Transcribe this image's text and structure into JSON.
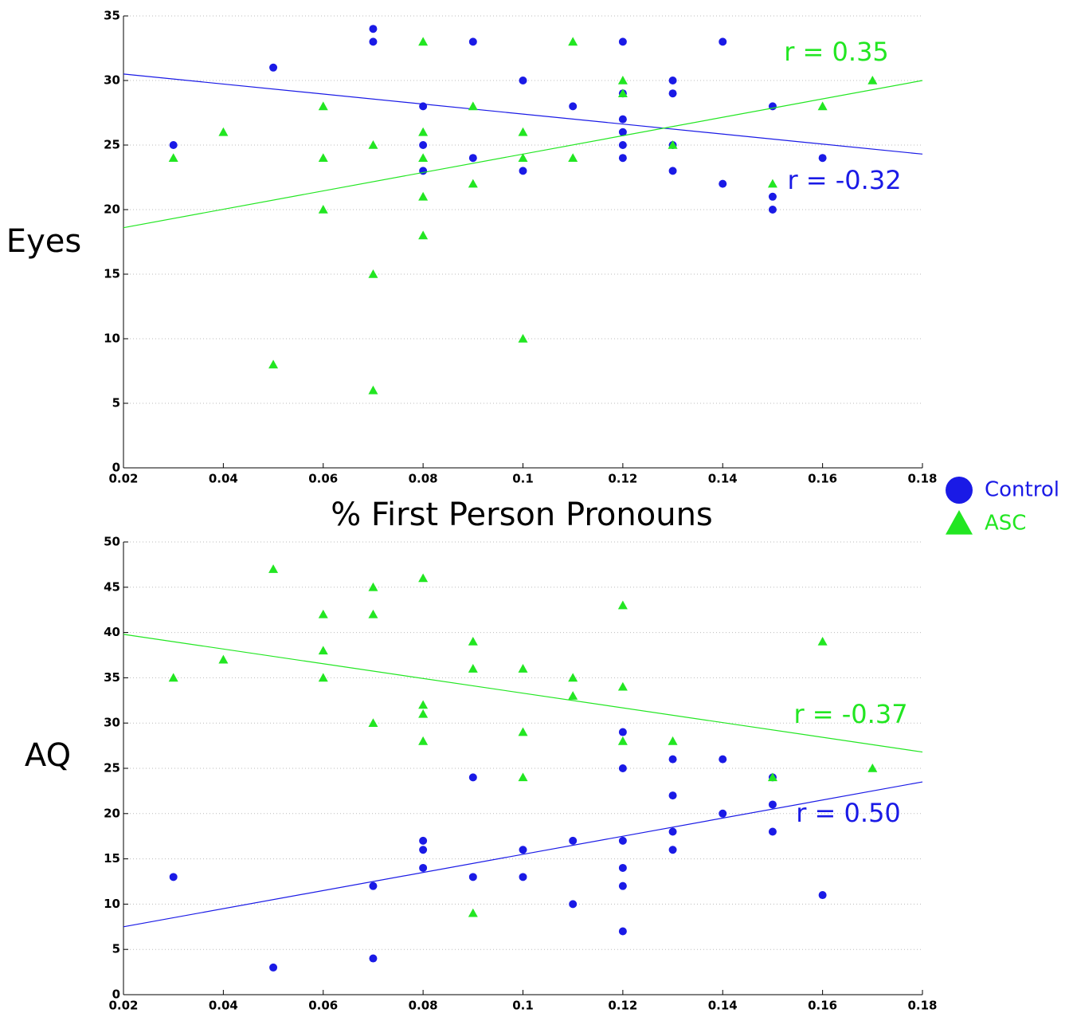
{
  "chart_data": [
    {
      "type": "scatter",
      "y_label": "Eyes",
      "x_label": "% First Person Pronouns",
      "xlim": [
        0.02,
        0.18
      ],
      "ylim": [
        0,
        35
      ],
      "xticks": [
        0.02,
        0.04,
        0.06,
        0.08,
        0.1,
        0.12,
        0.14,
        0.16,
        0.18
      ],
      "yticks": [
        0,
        5,
        10,
        15,
        20,
        25,
        30,
        35
      ],
      "grid": true,
      "series": [
        {
          "name": "Control",
          "color": "#1a1ae6",
          "marker": "circle",
          "x": [
            0.03,
            0.05,
            0.07,
            0.07,
            0.08,
            0.08,
            0.08,
            0.09,
            0.09,
            0.1,
            0.1,
            0.11,
            0.12,
            0.12,
            0.12,
            0.12,
            0.12,
            0.12,
            0.13,
            0.13,
            0.13,
            0.13,
            0.14,
            0.14,
            0.15,
            0.15,
            0.15,
            0.16
          ],
          "values": [
            25,
            31,
            34,
            33,
            28,
            25,
            23,
            33,
            24,
            30,
            23,
            28,
            33,
            29,
            27,
            26,
            25,
            24,
            30,
            29,
            25,
            23,
            33,
            22,
            28,
            21,
            20,
            24
          ],
          "fit": {
            "x": [
              0.02,
              0.18
            ],
            "values": [
              30.5,
              24.3
            ]
          },
          "r_label": "r = -0.32"
        },
        {
          "name": "ASC",
          "color": "#22e622",
          "marker": "triangle",
          "x": [
            0.03,
            0.04,
            0.05,
            0.06,
            0.06,
            0.06,
            0.07,
            0.07,
            0.07,
            0.08,
            0.08,
            0.08,
            0.08,
            0.08,
            0.09,
            0.09,
            0.1,
            0.1,
            0.1,
            0.11,
            0.11,
            0.12,
            0.12,
            0.13,
            0.15,
            0.16,
            0.17
          ],
          "values": [
            24,
            26,
            8,
            28,
            24,
            20,
            25,
            15,
            6,
            33,
            26,
            24,
            21,
            18,
            28,
            22,
            26,
            24,
            10,
            33,
            24,
            30,
            29,
            25,
            22,
            28,
            30
          ],
          "fit": {
            "x": [
              0.02,
              0.18
            ],
            "values": [
              18.6,
              30
            ]
          },
          "r_label": "r = 0.35"
        }
      ]
    },
    {
      "type": "scatter",
      "y_label": "AQ",
      "xlim": [
        0.02,
        0.18
      ],
      "ylim": [
        0,
        50
      ],
      "xticks": [
        0.02,
        0.04,
        0.06,
        0.08,
        0.1,
        0.12,
        0.14,
        0.16,
        0.18
      ],
      "yticks": [
        0,
        5,
        10,
        15,
        20,
        25,
        30,
        35,
        40,
        45,
        50
      ],
      "grid": true,
      "series": [
        {
          "name": "Control",
          "color": "#1a1ae6",
          "marker": "circle",
          "x": [
            0.03,
            0.05,
            0.07,
            0.07,
            0.08,
            0.08,
            0.08,
            0.09,
            0.09,
            0.1,
            0.1,
            0.11,
            0.11,
            0.12,
            0.12,
            0.12,
            0.12,
            0.12,
            0.12,
            0.13,
            0.13,
            0.13,
            0.13,
            0.14,
            0.14,
            0.15,
            0.15,
            0.15,
            0.16
          ],
          "values": [
            13,
            3,
            12,
            4,
            17,
            16,
            14,
            24,
            13,
            16,
            13,
            17,
            10,
            29,
            25,
            17,
            14,
            12,
            7,
            26,
            22,
            18,
            16,
            26,
            20,
            24,
            21,
            18,
            11
          ],
          "fit": {
            "x": [
              0.02,
              0.18
            ],
            "values": [
              7.5,
              23.5
            ]
          },
          "r_label": "r = 0.50"
        },
        {
          "name": "ASC",
          "color": "#22e622",
          "marker": "triangle",
          "x": [
            0.03,
            0.04,
            0.05,
            0.06,
            0.06,
            0.06,
            0.07,
            0.07,
            0.07,
            0.08,
            0.08,
            0.08,
            0.08,
            0.09,
            0.09,
            0.09,
            0.1,
            0.1,
            0.1,
            0.11,
            0.11,
            0.12,
            0.12,
            0.12,
            0.13,
            0.15,
            0.16,
            0.17
          ],
          "values": [
            35,
            37,
            47,
            42,
            38,
            35,
            45,
            42,
            30,
            46,
            32,
            31,
            28,
            39,
            36,
            9,
            36,
            29,
            24,
            35,
            33,
            43,
            34,
            28,
            28,
            24,
            39,
            25
          ],
          "fit": {
            "x": [
              0.02,
              0.18
            ],
            "values": [
              39.8,
              26.8
            ]
          },
          "r_label": "r = -0.37"
        }
      ]
    }
  ]
}
